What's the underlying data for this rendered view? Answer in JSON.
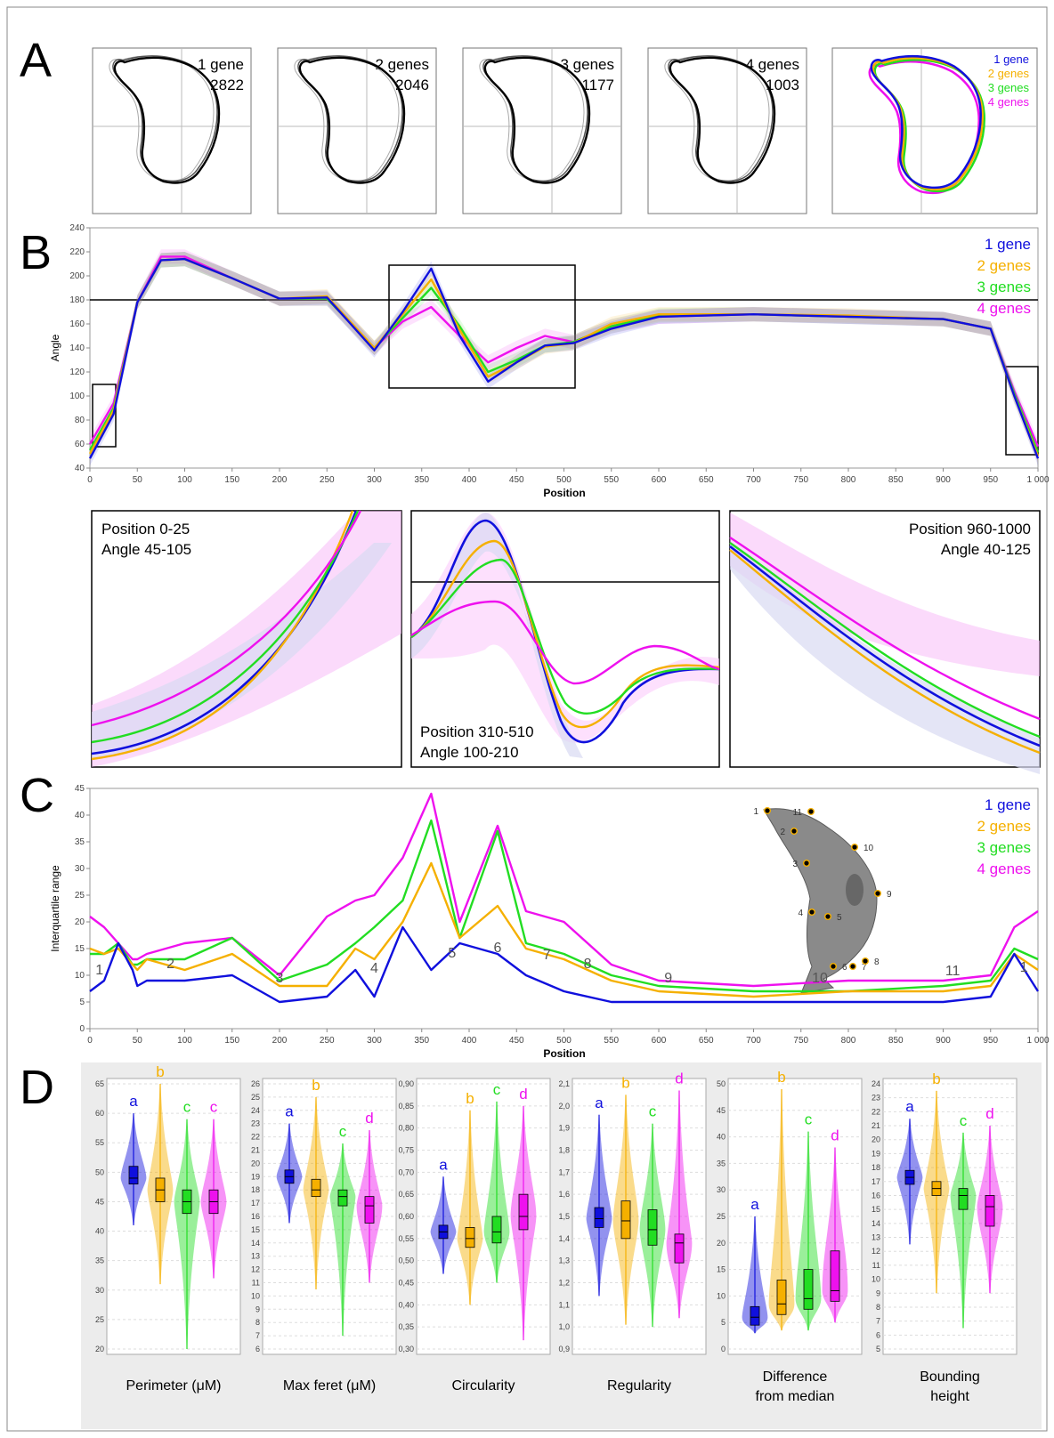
{
  "panels": {
    "A": "A",
    "B": "B",
    "C": "C",
    "D": "D"
  },
  "colors": {
    "1 gene": "#1010dd",
    "2 genes": "#f5b000",
    "3 genes": "#22dd22",
    "4 genes": "#ee11ee"
  },
  "panel_a": {
    "outlines": [
      {
        "label": "1 gene",
        "count": "2822"
      },
      {
        "label": "2 genes",
        "count": "2046"
      },
      {
        "label": "3 genes",
        "count": "1177"
      },
      {
        "label": "4 genes",
        "count": "1003"
      }
    ],
    "legend": [
      "1 gene",
      "2 genes",
      "3 genes",
      "4 genes"
    ]
  },
  "panel_b": {
    "ylabel": "Angle",
    "xlabel": "Position",
    "legend": [
      "1 gene",
      "2 genes",
      "3 genes",
      "4 genes"
    ],
    "zooms": [
      {
        "line1": "Position 0-25",
        "line2": "Angle 45-105"
      },
      {
        "line1": "Position 310-510",
        "line2": "Angle 100-210"
      },
      {
        "line1": "Position 960-1000",
        "line2": "Angle 40-125"
      }
    ]
  },
  "panel_c": {
    "ylabel": "Interquartile range",
    "xlabel": "Position",
    "legend": [
      "1 gene",
      "2 genes",
      "3 genes",
      "4 genes"
    ],
    "region_labels": [
      "1",
      "2",
      "3",
      "4",
      "5",
      "6",
      "7",
      "8",
      "9",
      "10",
      "11",
      "1"
    ],
    "landmarks": [
      "1",
      "2",
      "3",
      "4",
      "5",
      "6",
      "7",
      "8",
      "9",
      "10",
      "11"
    ]
  },
  "panel_d": {
    "plots": [
      {
        "title": "Perimeter (μM)",
        "letters": [
          "a",
          "b",
          "c",
          "c"
        ]
      },
      {
        "title": "Max feret (μM)",
        "letters": [
          "a",
          "b",
          "c",
          "d"
        ]
      },
      {
        "title": "Circularity",
        "letters": [
          "a",
          "b",
          "c",
          "d"
        ]
      },
      {
        "title": "Regularity",
        "letters": [
          "a",
          "b",
          "c",
          "d"
        ]
      },
      {
        "title": "Difference from median",
        "letters": [
          "a",
          "b",
          "c",
          "d"
        ]
      },
      {
        "title": "Bounding height",
        "letters": [
          "a",
          "b",
          "c",
          "d"
        ]
      }
    ]
  },
  "chart_data": [
    {
      "type": "line",
      "panel": "B",
      "xlabel": "Position",
      "ylabel": "Angle",
      "xlim": [
        0,
        1000
      ],
      "ylim": [
        40,
        240
      ],
      "x_ticks": [
        "0",
        "50",
        "100",
        "150",
        "200",
        "250",
        "300",
        "350",
        "400",
        "450",
        "500",
        "550",
        "600",
        "650",
        "700",
        "750",
        "800",
        "850",
        "900",
        "950",
        "1 000"
      ],
      "y_ticks": [
        "40",
        "60",
        "80",
        "100",
        "120",
        "140",
        "160",
        "180",
        "200",
        "220",
        "240"
      ],
      "reference_line": 180,
      "x": [
        0,
        25,
        50,
        75,
        100,
        150,
        200,
        250,
        300,
        330,
        360,
        390,
        420,
        450,
        480,
        510,
        550,
        600,
        700,
        800,
        900,
        950,
        975,
        1000
      ],
      "series": [
        {
          "name": "1 gene",
          "values": [
            48,
            85,
            178,
            213,
            214,
            198,
            181,
            182,
            138,
            170,
            206,
            150,
            112,
            128,
            142,
            144,
            156,
            166,
            168,
            166,
            164,
            156,
            100,
            48
          ]
        },
        {
          "name": "2 genes",
          "values": [
            52,
            88,
            178,
            213,
            214,
            198,
            181,
            183,
            140,
            168,
            197,
            155,
            116,
            128,
            141,
            144,
            160,
            168,
            168,
            167,
            164,
            156,
            100,
            50
          ]
        },
        {
          "name": "3 genes",
          "values": [
            55,
            90,
            178,
            213,
            214,
            198,
            181,
            181,
            140,
            165,
            190,
            158,
            120,
            130,
            142,
            145,
            158,
            167,
            168,
            166,
            164,
            156,
            102,
            53
          ]
        },
        {
          "name": "4 genes",
          "values": [
            60,
            94,
            178,
            216,
            216,
            198,
            181,
            181,
            140,
            162,
            174,
            150,
            128,
            140,
            150,
            145,
            158,
            166,
            168,
            166,
            164,
            156,
            104,
            58
          ]
        }
      ]
    },
    {
      "type": "line",
      "panel": "C",
      "xlabel": "Position",
      "ylabel": "Interquartile range",
      "xlim": [
        0,
        1000
      ],
      "ylim": [
        0,
        45
      ],
      "x_ticks": [
        "0",
        "50",
        "100",
        "150",
        "200",
        "250",
        "300",
        "350",
        "400",
        "450",
        "500",
        "550",
        "600",
        "650",
        "700",
        "750",
        "800",
        "850",
        "900",
        "950",
        "1 000"
      ],
      "y_ticks": [
        "0",
        "5",
        "10",
        "15",
        "20",
        "25",
        "30",
        "35",
        "40",
        "45"
      ],
      "x": [
        0,
        15,
        30,
        45,
        50,
        60,
        100,
        150,
        200,
        250,
        280,
        300,
        330,
        360,
        390,
        430,
        460,
        500,
        550,
        600,
        700,
        800,
        900,
        950,
        975,
        1000
      ],
      "series": [
        {
          "name": "1 gene",
          "values": [
            7,
            9,
            16,
            11,
            8,
            9,
            9,
            10,
            5,
            6,
            11,
            6,
            19,
            11,
            16,
            14,
            10,
            7,
            5,
            5,
            5,
            5,
            5,
            6,
            14,
            7
          ]
        },
        {
          "name": "2 genes",
          "values": [
            15,
            14,
            15,
            12,
            11,
            13,
            11,
            14,
            8,
            8,
            15,
            13,
            20,
            31,
            17,
            23,
            15,
            13,
            9,
            7,
            6,
            7,
            7,
            8,
            14,
            11
          ]
        },
        {
          "name": "3 genes",
          "values": [
            14,
            14,
            16,
            12,
            12,
            13,
            13,
            17,
            9,
            12,
            16,
            19,
            24,
            39,
            17,
            37,
            16,
            14,
            10,
            8,
            7,
            7,
            8,
            9,
            15,
            13
          ]
        },
        {
          "name": "4 genes",
          "values": [
            21,
            19,
            16,
            13,
            13,
            14,
            16,
            17,
            10,
            21,
            24,
            25,
            32,
            44,
            20,
            38,
            22,
            20,
            12,
            9,
            8,
            9,
            9,
            10,
            19,
            22
          ]
        }
      ]
    },
    {
      "type": "box",
      "panel": "D",
      "plots": [
        {
          "title": "Perimeter (μM)",
          "ylim": [
            20,
            65
          ],
          "yticks": [
            20,
            25,
            30,
            35,
            40,
            45,
            50,
            55,
            60,
            65
          ],
          "series": [
            {
              "name": "1 gene",
              "min": 41,
              "q1": 48,
              "median": 49,
              "q3": 51,
              "max": 60
            },
            {
              "name": "2 genes",
              "min": 31,
              "q1": 45,
              "median": 47,
              "q3": 49,
              "max": 65
            },
            {
              "name": "3 genes",
              "min": 20,
              "q1": 43,
              "median": 45,
              "q3": 47,
              "max": 59
            },
            {
              "name": "4 genes",
              "min": 32,
              "q1": 43,
              "median": 45,
              "q3": 47,
              "max": 59
            }
          ]
        },
        {
          "title": "Max feret (μM)",
          "ylim": [
            6,
            26
          ],
          "yticks": [
            6,
            7,
            8,
            9,
            10,
            11,
            12,
            13,
            14,
            15,
            16,
            17,
            18,
            19,
            20,
            21,
            22,
            23,
            24,
            25,
            26
          ],
          "series": [
            {
              "name": "1 gene",
              "min": 15.5,
              "q1": 18.5,
              "median": 19,
              "q3": 19.5,
              "max": 23
            },
            {
              "name": "2 genes",
              "min": 10.5,
              "q1": 17.5,
              "median": 18,
              "q3": 18.8,
              "max": 25
            },
            {
              "name": "3 genes",
              "min": 7,
              "q1": 16.8,
              "median": 17.5,
              "q3": 18,
              "max": 21.5
            },
            {
              "name": "4 genes",
              "min": 11,
              "q1": 15.5,
              "median": 16.8,
              "q3": 17.5,
              "max": 22.5
            }
          ]
        },
        {
          "title": "Circularity",
          "ylim": [
            0.3,
            0.9
          ],
          "yticks": [
            0.3,
            0.35,
            0.4,
            0.45,
            0.5,
            0.55,
            0.6,
            0.65,
            0.7,
            0.75,
            0.8,
            0.85,
            0.9
          ],
          "series": [
            {
              "name": "1 gene",
              "min": 0.47,
              "q1": 0.55,
              "median": 0.565,
              "q3": 0.58,
              "max": 0.69
            },
            {
              "name": "2 genes",
              "min": 0.4,
              "q1": 0.53,
              "median": 0.55,
              "q3": 0.575,
              "max": 0.84
            },
            {
              "name": "3 genes",
              "min": 0.45,
              "q1": 0.54,
              "median": 0.565,
              "q3": 0.6,
              "max": 0.86
            },
            {
              "name": "4 genes",
              "min": 0.32,
              "q1": 0.57,
              "median": 0.6,
              "q3": 0.65,
              "max": 0.85
            }
          ]
        },
        {
          "title": "Regularity",
          "ylim": [
            0.9,
            2.1
          ],
          "yticks": [
            0.9,
            1.0,
            1.1,
            1.2,
            1.3,
            1.4,
            1.5,
            1.6,
            1.7,
            1.8,
            1.9,
            2.0,
            2.1
          ],
          "series": [
            {
              "name": "1 gene",
              "min": 1.14,
              "q1": 1.45,
              "median": 1.49,
              "q3": 1.54,
              "max": 1.96
            },
            {
              "name": "2 genes",
              "min": 1.01,
              "q1": 1.4,
              "median": 1.48,
              "q3": 1.57,
              "max": 2.05
            },
            {
              "name": "3 genes",
              "min": 1.0,
              "q1": 1.37,
              "median": 1.44,
              "q3": 1.53,
              "max": 1.92
            },
            {
              "name": "4 genes",
              "min": 1.04,
              "q1": 1.29,
              "median": 1.38,
              "q3": 1.42,
              "max": 2.07
            }
          ]
        },
        {
          "title": "Difference from median",
          "ylim": [
            0,
            50
          ],
          "yticks": [
            0,
            5,
            10,
            15,
            20,
            25,
            30,
            35,
            40,
            45,
            50
          ],
          "series": [
            {
              "name": "1 gene",
              "min": 3,
              "q1": 4.5,
              "median": 6,
              "q3": 8,
              "max": 25
            },
            {
              "name": "2 genes",
              "min": 3.5,
              "q1": 6.5,
              "median": 8.5,
              "q3": 13,
              "max": 49
            },
            {
              "name": "3 genes",
              "min": 3.5,
              "q1": 7.5,
              "median": 9.5,
              "q3": 15,
              "max": 41
            },
            {
              "name": "4 genes",
              "min": 5,
              "q1": 9,
              "median": 11,
              "q3": 18.5,
              "max": 38
            }
          ]
        },
        {
          "title": "Bounding height",
          "ylim": [
            5,
            24
          ],
          "yticks": [
            5,
            6,
            7,
            8,
            9,
            10,
            11,
            12,
            13,
            14,
            15,
            16,
            17,
            18,
            19,
            20,
            21,
            22,
            23,
            24
          ],
          "series": [
            {
              "name": "1 gene",
              "min": 12.5,
              "q1": 16.8,
              "median": 17.3,
              "q3": 17.8,
              "max": 21.5
            },
            {
              "name": "2 genes",
              "min": 9,
              "q1": 16,
              "median": 16.5,
              "q3": 17,
              "max": 23.5
            },
            {
              "name": "3 genes",
              "min": 6.5,
              "q1": 15,
              "median": 16,
              "q3": 16.5,
              "max": 20.5
            },
            {
              "name": "4 genes",
              "min": 9,
              "q1": 13.8,
              "median": 15.2,
              "q3": 16,
              "max": 21
            }
          ]
        }
      ]
    }
  ]
}
